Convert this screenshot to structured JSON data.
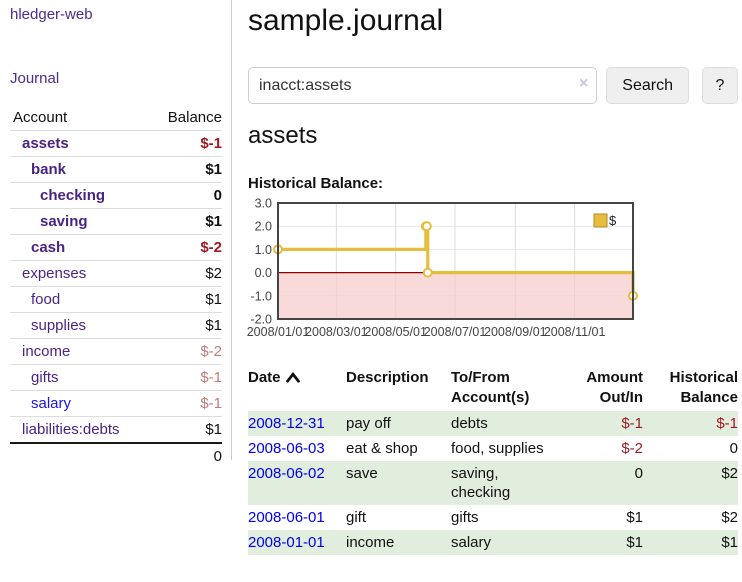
{
  "sidebar": {
    "brand": "hledger-web",
    "journal_link": "Journal",
    "accounts_table": {
      "headers": {
        "account": "Account",
        "balance": "Balance"
      },
      "rows": [
        {
          "name": "assets",
          "depth": 1,
          "bold": true,
          "balance": "$-1",
          "balance_style": "neg"
        },
        {
          "name": "bank",
          "depth": 2,
          "bold": true,
          "balance": "$1",
          "balance_style": "pos"
        },
        {
          "name": "checking",
          "depth": 3,
          "bold": true,
          "balance": "0",
          "balance_style": "pos"
        },
        {
          "name": "saving",
          "depth": 3,
          "bold": true,
          "balance": "$1",
          "balance_style": "pos"
        },
        {
          "name": "cash",
          "depth": 2,
          "bold": true,
          "balance": "$-2",
          "balance_style": "neg"
        },
        {
          "name": "expenses",
          "depth": 1,
          "bold": false,
          "balance": "$2",
          "balance_style": "pos"
        },
        {
          "name": "food",
          "depth": 2,
          "bold": false,
          "balance": "$1",
          "balance_style": "pos"
        },
        {
          "name": "supplies",
          "depth": 2,
          "bold": false,
          "balance": "$1",
          "balance_style": "pos"
        },
        {
          "name": "income",
          "depth": 1,
          "bold": false,
          "balance": "$-2",
          "balance_style": "neg-soft"
        },
        {
          "name": "gifts",
          "depth": 2,
          "bold": false,
          "balance": "$-1",
          "balance_style": "neg-soft"
        },
        {
          "name": "salary",
          "depth": 2,
          "bold": false,
          "balance": "$-1",
          "balance_style": "neg-soft",
          "link_style": "blue"
        },
        {
          "name": "liabilities:debts",
          "depth": 1,
          "bold": false,
          "balance": "$1",
          "balance_style": "pos"
        }
      ],
      "total": "0"
    }
  },
  "header": {
    "title": "sample.journal"
  },
  "search": {
    "value": "inacct:assets",
    "clear_icon": "×",
    "button_label": "Search",
    "help_label": "?"
  },
  "account_page": {
    "title": "assets",
    "chart_caption": "Historical Balance:"
  },
  "chart_data": {
    "type": "line",
    "title": "Historical Balance",
    "step": "after",
    "series": [
      {
        "name": "$",
        "points": [
          [
            "2008-01-01",
            1
          ],
          [
            "2008-06-01",
            2
          ],
          [
            "2008-06-02",
            2
          ],
          [
            "2008-06-03",
            0
          ],
          [
            "2008-12-31",
            -1
          ]
        ]
      }
    ],
    "x_range": [
      "2008-01-01",
      "2008-12-31"
    ],
    "x_ticks": [
      "2008/01/01",
      "2008/03/01",
      "2008/05/01",
      "2008/07/01",
      "2008/09/01",
      "2008/11/01"
    ],
    "y_ticks": [
      3.0,
      2.0,
      1.0,
      0.0,
      -1.0,
      -2.0
    ],
    "ylim": [
      -2,
      3
    ],
    "legend": [
      "$"
    ],
    "legend_position": "top-right",
    "grid": true,
    "colors": {
      "line": "#e7bd3f",
      "marker_fill": "#ffffff",
      "negative_region": "#f6caca",
      "zero_line": "#8b0000",
      "border": "#444444",
      "grid": "#dddddd",
      "legend_border": "#b08c20",
      "tick_text": "#444444"
    }
  },
  "register": {
    "headers": {
      "date": "Date",
      "description": "Description",
      "tofrom1": "To/From",
      "tofrom2": "Account(s)",
      "amount1": "Amount",
      "amount2": "Out/In",
      "hist1": "Historical",
      "hist2": "Balance"
    },
    "sort": {
      "column": "date",
      "direction": "asc"
    },
    "rows": [
      {
        "date": "2008-12-31",
        "description": "pay off",
        "accounts": [
          "debts"
        ],
        "amount": "$-1",
        "amount_style": "neg",
        "balance": "$-1",
        "balance_style": "neg",
        "shaded": true
      },
      {
        "date": "2008-06-03",
        "description": "eat & shop",
        "accounts": [
          "food, supplies"
        ],
        "amount": "$-2",
        "amount_style": "neg",
        "balance": "0",
        "balance_style": "pos",
        "shaded": false
      },
      {
        "date": "2008-06-02",
        "description": "save",
        "accounts": [
          "saving,",
          "checking"
        ],
        "amount": "0",
        "amount_style": "pos",
        "balance": "$2",
        "balance_style": "pos",
        "shaded": true
      },
      {
        "date": "2008-06-01",
        "description": "gift",
        "accounts": [
          "gifts"
        ],
        "amount": "$1",
        "amount_style": "pos",
        "balance": "$2",
        "balance_style": "pos",
        "shaded": false
      },
      {
        "date": "2008-01-01",
        "description": "income",
        "accounts": [
          "salary"
        ],
        "amount": "$1",
        "amount_style": "pos",
        "balance": "$1",
        "balance_style": "pos",
        "shaded": true
      }
    ]
  }
}
